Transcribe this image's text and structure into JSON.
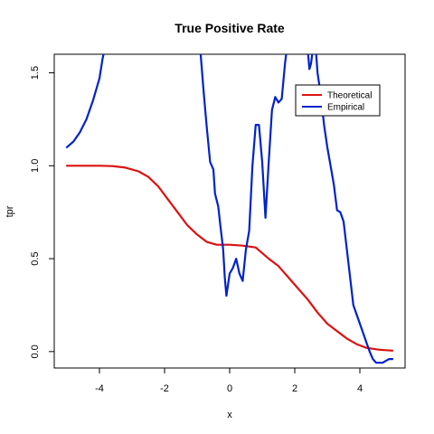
{
  "chart_data": {
    "type": "line",
    "title": "True Positive Rate",
    "xlabel": "x",
    "ylabel": "tpr",
    "xlim": [
      -5.0,
      5.0
    ],
    "ylim": [
      -0.03,
      1.6
    ],
    "x_ticks": [
      -4,
      -2,
      0,
      2,
      4
    ],
    "y_ticks": [
      0.0,
      0.5,
      1.0,
      1.5
    ],
    "x_tick_labels": [
      "-4",
      "-2",
      "0",
      "2",
      "4"
    ],
    "y_tick_labels": [
      "0.0",
      "0.5",
      "1.0",
      "1.5"
    ],
    "grid": false,
    "legend_position": "top-right",
    "series": [
      {
        "name": "Theoretical",
        "color": "#dd1111",
        "points": [
          [
            -5.0,
            1.0
          ],
          [
            -4.5,
            1.0
          ],
          [
            -4.0,
            1.0
          ],
          [
            -3.6,
            0.998
          ],
          [
            -3.2,
            0.99
          ],
          [
            -2.8,
            0.97
          ],
          [
            -2.5,
            0.94
          ],
          [
            -2.2,
            0.89
          ],
          [
            -1.9,
            0.82
          ],
          [
            -1.6,
            0.75
          ],
          [
            -1.3,
            0.68
          ],
          [
            -1.0,
            0.63
          ],
          [
            -0.7,
            0.59
          ],
          [
            -0.4,
            0.575
          ],
          [
            0.0,
            0.575
          ],
          [
            0.4,
            0.57
          ],
          [
            0.8,
            0.56
          ],
          [
            1.0,
            0.53
          ],
          [
            1.2,
            0.5
          ],
          [
            1.5,
            0.46
          ],
          [
            1.8,
            0.4
          ],
          [
            2.1,
            0.34
          ],
          [
            2.4,
            0.28
          ],
          [
            2.7,
            0.21
          ],
          [
            3.0,
            0.15
          ],
          [
            3.3,
            0.11
          ],
          [
            3.6,
            0.07
          ],
          [
            3.9,
            0.04
          ],
          [
            4.2,
            0.02
          ],
          [
            4.6,
            0.01
          ],
          [
            5.0,
            0.005
          ]
        ]
      },
      {
        "name": "Empirical",
        "color": "#0022cc",
        "points": [
          [
            -5.0,
            1.1
          ],
          [
            -4.8,
            1.13
          ],
          [
            -4.6,
            1.18
          ],
          [
            -4.4,
            1.25
          ],
          [
            -4.2,
            1.35
          ],
          [
            -4.0,
            1.47
          ],
          [
            -3.9,
            1.58
          ],
          [
            -3.85,
            1.62
          ],
          null,
          [
            -0.9,
            1.62
          ],
          [
            -0.8,
            1.4
          ],
          [
            -0.7,
            1.2
          ],
          [
            -0.6,
            1.02
          ],
          [
            -0.5,
            0.98
          ],
          [
            -0.45,
            0.85
          ],
          [
            -0.35,
            0.78
          ],
          [
            -0.3,
            0.7
          ],
          [
            -0.2,
            0.55
          ],
          [
            -0.15,
            0.4
          ],
          [
            -0.1,
            0.3
          ],
          [
            0.0,
            0.42
          ],
          [
            0.1,
            0.45
          ],
          [
            0.2,
            0.5
          ],
          [
            0.3,
            0.42
          ],
          [
            0.4,
            0.38
          ],
          [
            0.5,
            0.55
          ],
          [
            0.6,
            0.65
          ],
          [
            0.7,
            1.0
          ],
          [
            0.8,
            1.22
          ],
          [
            0.9,
            1.22
          ],
          [
            1.0,
            1.02
          ],
          [
            1.1,
            0.72
          ],
          [
            1.2,
            1.02
          ],
          [
            1.3,
            1.3
          ],
          [
            1.4,
            1.37
          ],
          [
            1.5,
            1.34
          ],
          [
            1.6,
            1.36
          ],
          [
            1.7,
            1.55
          ],
          [
            1.75,
            1.62
          ],
          null,
          [
            2.4,
            1.62
          ],
          [
            2.45,
            1.52
          ],
          [
            2.5,
            1.55
          ],
          [
            2.55,
            1.62
          ],
          null,
          [
            2.65,
            1.62
          ],
          [
            2.7,
            1.5
          ],
          [
            2.8,
            1.38
          ],
          [
            2.9,
            1.22
          ],
          [
            3.0,
            1.1
          ],
          [
            3.1,
            1.0
          ],
          [
            3.2,
            0.9
          ],
          [
            3.3,
            0.76
          ],
          [
            3.4,
            0.75
          ],
          [
            3.5,
            0.7
          ],
          [
            3.6,
            0.55
          ],
          [
            3.7,
            0.4
          ],
          [
            3.8,
            0.25
          ],
          [
            3.9,
            0.2
          ],
          [
            4.0,
            0.15
          ],
          [
            4.1,
            0.1
          ],
          [
            4.2,
            0.05
          ],
          [
            4.3,
            0.0
          ],
          [
            4.4,
            -0.04
          ],
          [
            4.5,
            -0.06
          ],
          [
            4.6,
            -0.06
          ],
          [
            4.7,
            -0.06
          ],
          [
            4.8,
            -0.05
          ],
          [
            4.9,
            -0.04
          ],
          [
            5.0,
            -0.04
          ]
        ]
      }
    ]
  }
}
